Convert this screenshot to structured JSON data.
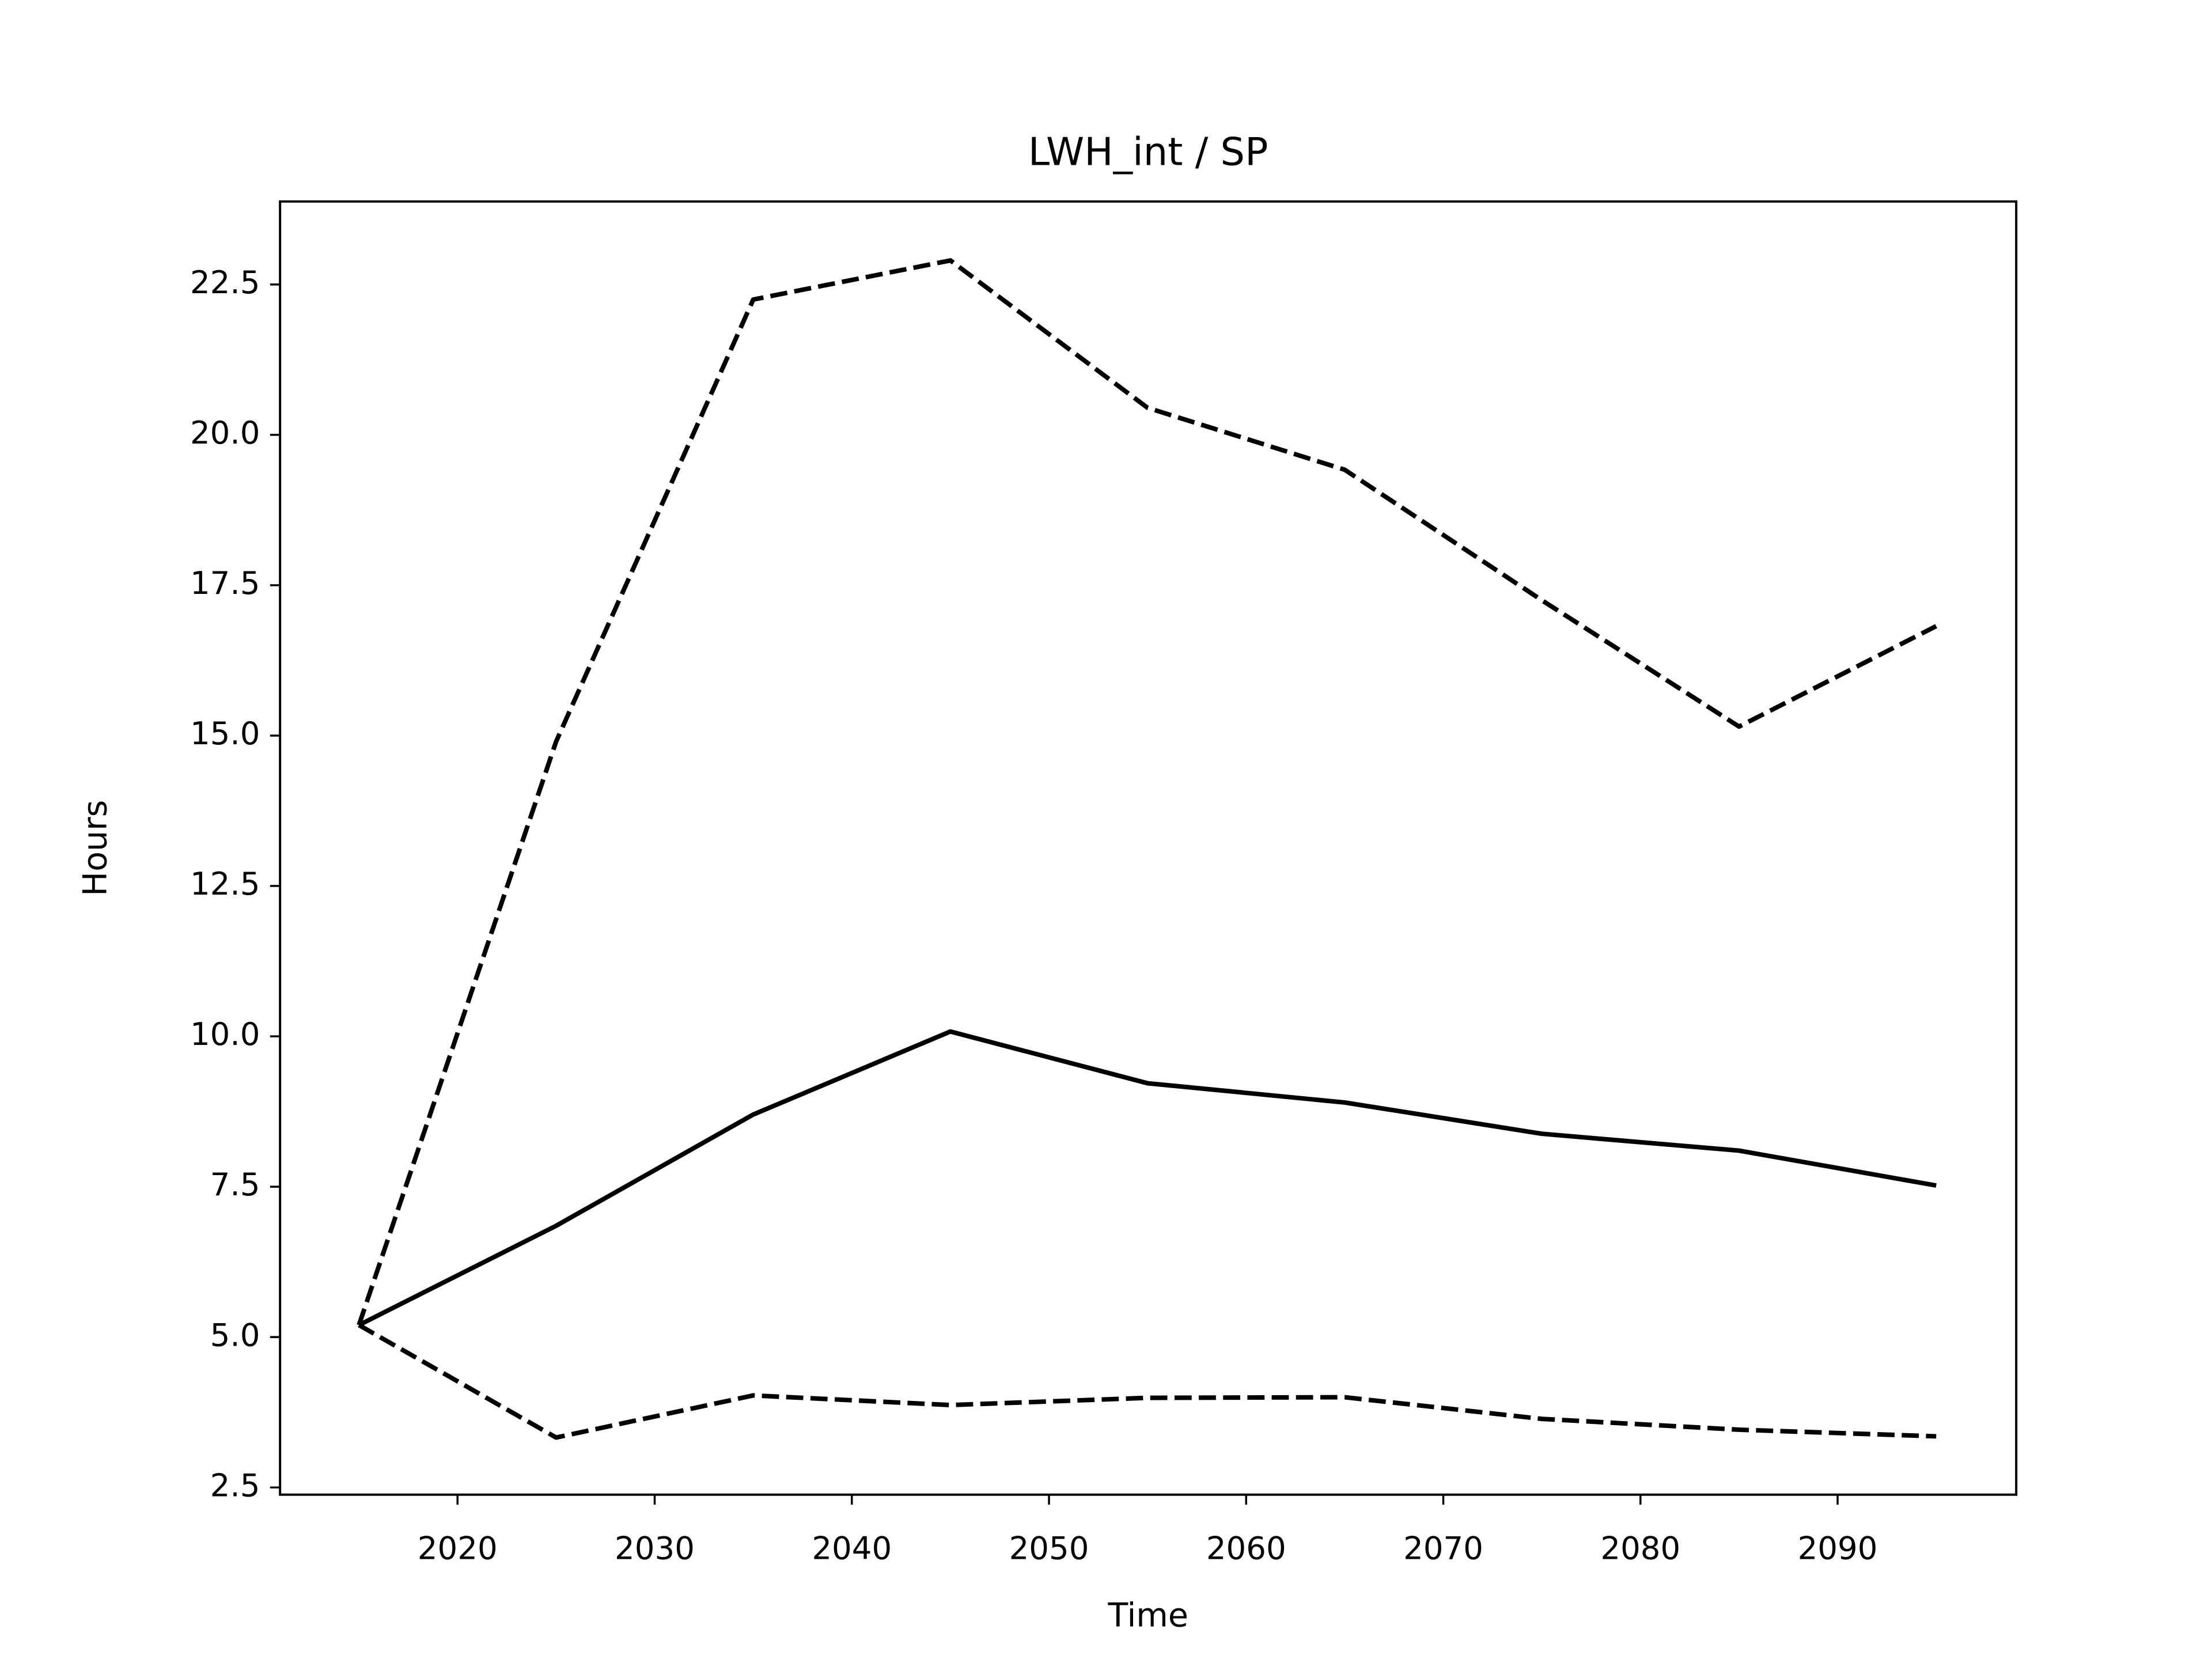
{
  "chart_data": {
    "type": "line",
    "title": "LWH_int / SP",
    "x_label": "Time",
    "y_label": "Hours",
    "x": [
      2015,
      2025,
      2035,
      2045,
      2055,
      2065,
      2075,
      2085,
      2095
    ],
    "series": [
      {
        "color": "#000000",
        "linestyle": "solid",
        "values": [
          5.2,
          6.85,
          8.7,
          10.08,
          9.22,
          8.9,
          8.38,
          8.1,
          7.52
        ]
      },
      {
        "color": "#000000",
        "linestyle": "dashed",
        "values": [
          5.2,
          14.9,
          22.25,
          22.9,
          20.45,
          19.42,
          17.25,
          15.15,
          16.82
        ]
      },
      {
        "color": "#000000",
        "linestyle": "dashed",
        "values": [
          5.2,
          3.33,
          4.03,
          3.87,
          3.99,
          4.0,
          3.64,
          3.46,
          3.35
        ]
      }
    ],
    "xlim": [
      2011,
      2099.06
    ],
    "ylim": [
      2.38,
      23.88
    ],
    "xticks": [
      2020,
      2030,
      2040,
      2050,
      2060,
      2070,
      2080,
      2090
    ],
    "yticks": [
      2.5,
      {
        "value": 5,
        "label": "5.0"
      },
      7.5,
      {
        "value": 10,
        "label": "10.0"
      },
      12.5,
      {
        "value": 15,
        "label": "15.0"
      },
      17.5,
      {
        "value": 20,
        "label": "20.0"
      },
      22.5
    ],
    "grid": false
  }
}
